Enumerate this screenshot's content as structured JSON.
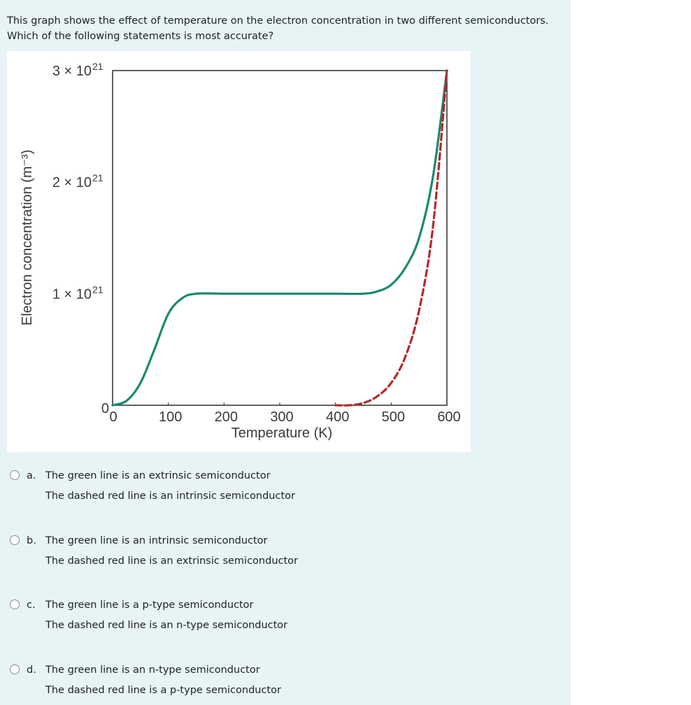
{
  "question": {
    "text": "This graph shows the effect of temperature on the electron concentration in two different semiconductors. Which of the following statements is most accurate?"
  },
  "chart_data": {
    "type": "line",
    "xlabel": "Temperature (K)",
    "ylabel": "Electron concentration (m⁻³)",
    "xlim": [
      0,
      600
    ],
    "ylim": [
      0,
      3e+21
    ],
    "x_ticks": [
      "0",
      "100",
      "200",
      "300",
      "400",
      "500",
      "600"
    ],
    "y_ticks": [
      {
        "value": 0,
        "mantissa": "0",
        "exponent": ""
      },
      {
        "value": 1e+21,
        "mantissa": "1 × 10",
        "exponent": "21"
      },
      {
        "value": 2e+21,
        "mantissa": "2 × 10",
        "exponent": "21"
      },
      {
        "value": 3e+21,
        "mantissa": "3 × 10",
        "exponent": "21"
      }
    ],
    "series": [
      {
        "style": "solid",
        "color": "#1a8a6e",
        "x": [
          0,
          25,
          50,
          75,
          100,
          125,
          150,
          200,
          250,
          300,
          350,
          400,
          450,
          475,
          500,
          525,
          550,
          575,
          600
        ],
        "y": [
          0,
          4e+19,
          2e+20,
          5e+20,
          8.2e+20,
          9.6e+20,
          1e+21,
          1e+21,
          1e+21,
          1e+21,
          1e+21,
          1e+21,
          1e+21,
          1.02e+21,
          1.08e+21,
          1.23e+21,
          1.5e+21,
          2.05e+21,
          3e+21
        ]
      },
      {
        "style": "dashed",
        "color": "#b22a2a",
        "x": [
          400,
          425,
          450,
          475,
          500,
          525,
          550,
          575,
          600
        ],
        "y": [
          0,
          0,
          2e+19,
          8e+19,
          2e+20,
          4.3e+20,
          8.5e+20,
          1.6e+21,
          3e+21
        ]
      }
    ],
    "grid": false
  },
  "options": [
    {
      "letter": "a.",
      "line1": "The green line is an extrinsic semiconductor",
      "line2": "The dashed red line is an intrinsic semiconductor"
    },
    {
      "letter": "b.",
      "line1": "The green line is an intrinsic semiconductor",
      "line2": "The dashed red line is an extrinsic semiconductor"
    },
    {
      "letter": "c.",
      "line1": "The green line is a p-type semiconductor",
      "line2": "The dashed red line is an n-type semiconductor"
    },
    {
      "letter": "d.",
      "line1": "The green line is an n-type semiconductor",
      "line2": "The dashed red line is a p-type semiconductor"
    }
  ]
}
